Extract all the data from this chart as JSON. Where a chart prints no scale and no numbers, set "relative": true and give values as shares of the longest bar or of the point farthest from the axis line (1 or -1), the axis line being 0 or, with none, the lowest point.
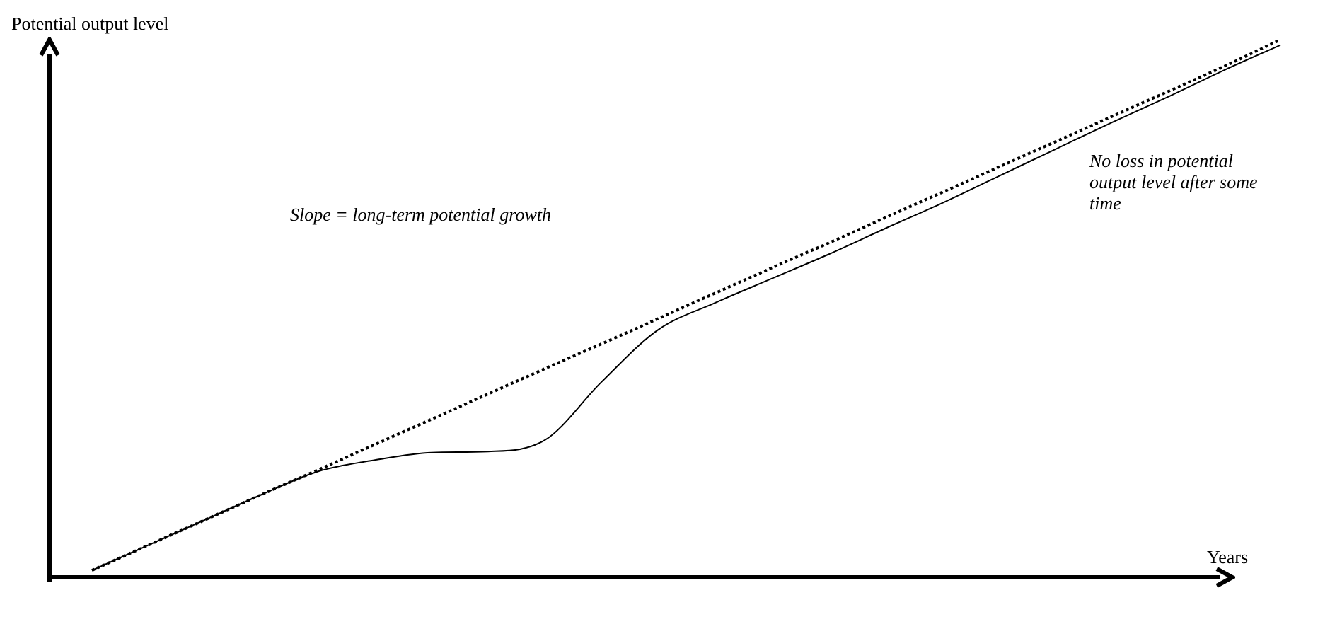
{
  "chart_data": {
    "type": "line",
    "relative": true,
    "xlabel": "Years",
    "ylabel": "Potential output level",
    "categories": [
      null,
      null,
      null,
      null,
      null,
      null,
      null,
      null,
      null,
      null,
      null,
      null,
      null,
      null,
      null,
      null,
      null,
      null,
      null,
      null,
      null,
      null
    ],
    "series": [
      {
        "color": "#000000",
        "line_style": "dotted",
        "values": [
          0.013,
          0.06,
          0.107,
          0.154,
          0.2,
          0.247,
          0.294,
          0.341,
          0.388,
          0.434,
          0.481,
          0.528,
          0.575,
          0.621,
          0.668,
          0.715,
          0.762,
          0.809,
          0.856,
          0.903,
          0.95,
          1.0
        ]
      },
      {
        "color": "#000000",
        "line_style": "solid",
        "values": [
          0.013,
          0.06,
          0.107,
          0.154,
          0.197,
          0.218,
          0.232,
          0.234,
          0.255,
          0.363,
          0.46,
          0.51,
          0.555,
          0.6,
          0.648,
          0.695,
          0.745,
          0.795,
          0.845,
          0.893,
          0.943,
          0.99
        ]
      }
    ],
    "annotations": [
      "Slope = long-term potential growth",
      "No loss in potential output level after some time"
    ],
    "legend": false,
    "grid": false,
    "marker": "none"
  }
}
